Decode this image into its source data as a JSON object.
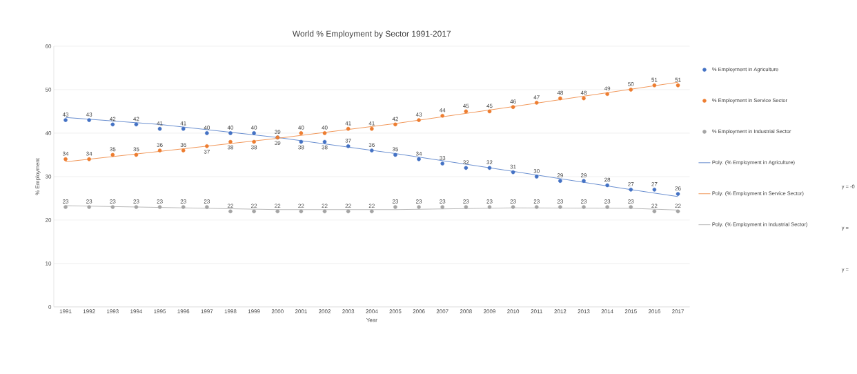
{
  "chart_data": {
    "type": "scatter",
    "title": "World % Employment by Sector 1991-2017",
    "xlabel": "Year",
    "ylabel": "% Employment",
    "x": [
      1991,
      1992,
      1993,
      1994,
      1995,
      1996,
      1997,
      1998,
      1999,
      2000,
      2001,
      2002,
      2003,
      2004,
      2005,
      2006,
      2007,
      2008,
      2009,
      2010,
      2011,
      2012,
      2013,
      2014,
      2015,
      2016,
      2017
    ],
    "xlim": [
      1990.5,
      2017.5
    ],
    "xticks": [
      1991,
      1992,
      1993,
      1994,
      1995,
      1996,
      1997,
      1998,
      1999,
      2000,
      2001,
      2002,
      2003,
      2004,
      2005,
      2006,
      2007,
      2008,
      2009,
      2010,
      2011,
      2012,
      2013,
      2014,
      2015,
      2016,
      2017
    ],
    "ylim": [
      0,
      60
    ],
    "yticks": [
      0,
      10,
      20,
      30,
      40,
      50,
      60
    ],
    "grid": "y",
    "marker": "circle",
    "legend": "right",
    "series": [
      {
        "name": "% Employment in Agriculture",
        "color": "#4472c4",
        "values": [
          43,
          43,
          42,
          42,
          41,
          41,
          40,
          40,
          40,
          39,
          38,
          38,
          37,
          36,
          35,
          34,
          33,
          32,
          32,
          31,
          30,
          29,
          29,
          28,
          27,
          27,
          26
        ],
        "value_labels": [
          "43",
          "43",
          "42",
          "42",
          "41",
          "41",
          "40",
          "40",
          "40",
          "39",
          "38",
          "38",
          "37",
          "36",
          "35",
          "34",
          "33",
          "32",
          "32",
          "31",
          "30",
          "29",
          "29",
          "28",
          "27",
          "27",
          "26"
        ]
      },
      {
        "name": "% Employment in Service Sector",
        "color": "#ed7d31",
        "values": [
          34,
          34,
          35,
          35,
          36,
          36,
          37,
          38,
          38,
          39,
          40,
          40,
          41,
          41,
          42,
          43,
          44,
          45,
          45,
          46,
          47,
          48,
          48,
          49,
          50,
          51,
          51
        ],
        "value_labels": [
          "34",
          "34",
          "35",
          "35",
          "36",
          "36",
          "37",
          "38",
          "38",
          "39",
          "40",
          "40",
          "41",
          "41",
          "42",
          "43",
          "44",
          "45",
          "45",
          "46",
          "47",
          "48",
          "48",
          "49",
          "50",
          "51",
          "51"
        ]
      },
      {
        "name": "% Employment in Industrial Sector",
        "color": "#a5a5a5",
        "values": [
          23,
          23,
          23,
          23,
          23,
          23,
          23,
          22,
          22,
          22,
          22,
          22,
          22,
          22,
          23,
          23,
          23,
          23,
          23,
          23,
          23,
          23,
          23,
          23,
          23,
          22,
          22
        ],
        "value_labels": [
          "23",
          "23",
          "23",
          "23",
          "23",
          "23",
          "23",
          "22",
          "22",
          "22",
          "22",
          "22",
          "22",
          "22",
          "23",
          "23",
          "23",
          "23",
          "23",
          "23",
          "23",
          "23",
          "23",
          "23",
          "23",
          "22",
          "22"
        ]
      },
      {
        "name": "Poly. (% Employment in Agriculture)",
        "type": "line",
        "marker": "none",
        "color": "#4472c4",
        "x": [
          1991,
          1995,
          2000,
          2005,
          2010,
          2015,
          2017
        ],
        "values": [
          43.6,
          42.0,
          39.0,
          35.3,
          31.2,
          27.0,
          25.4
        ]
      },
      {
        "name": "Poly. (% Employment in Service Sector)",
        "type": "line",
        "marker": "none",
        "color": "#ed7d31",
        "x": [
          1991,
          1995,
          2000,
          2005,
          2010,
          2015,
          2017
        ],
        "values": [
          33.4,
          35.8,
          38.8,
          42.2,
          46.1,
          50.1,
          51.7
        ]
      },
      {
        "name": "Poly. (% Employment in Industrial Sector)",
        "type": "line",
        "marker": "none",
        "color": "#a5a5a5",
        "x": [
          1991,
          1995,
          2000,
          2005,
          2010,
          2015,
          2017
        ],
        "values": [
          23.3,
          22.9,
          22.4,
          22.4,
          22.8,
          22.7,
          22.3
        ]
      }
    ],
    "annotations": [
      "y = -0",
      "y =",
      "y ="
    ]
  }
}
